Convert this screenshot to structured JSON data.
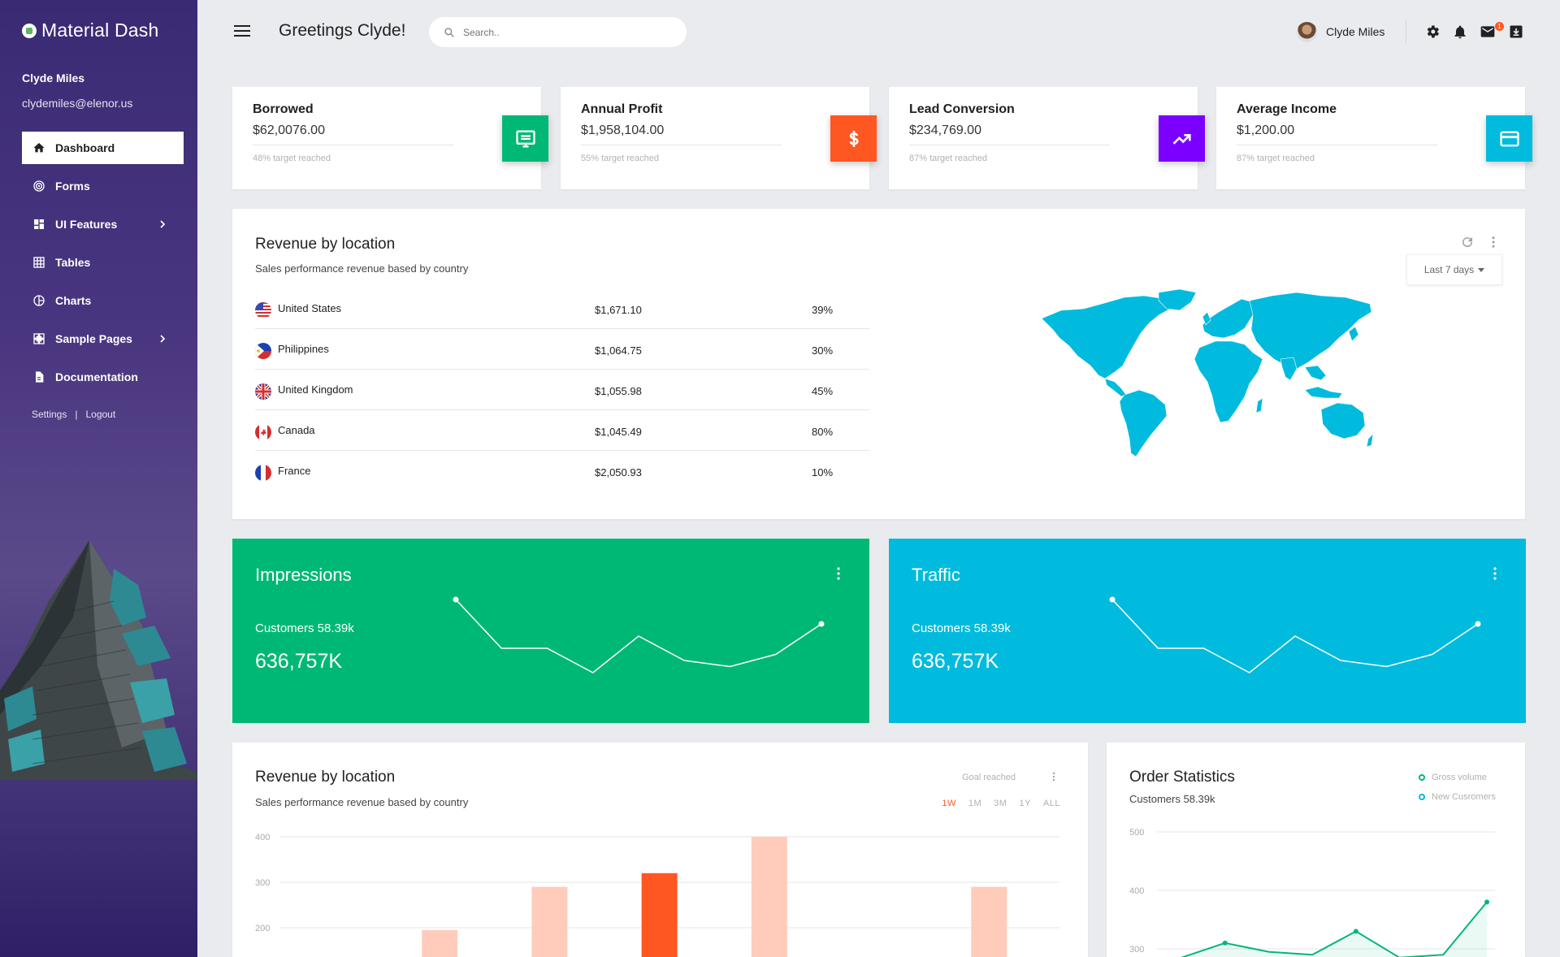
{
  "sidebar": {
    "brand": "Material Dash",
    "user_name": "Clyde Miles",
    "user_email": "clydemiles@elenor.us",
    "items": [
      {
        "label": "Dashboard",
        "icon": "home-icon",
        "active": true
      },
      {
        "label": "Forms",
        "icon": "target-icon"
      },
      {
        "label": "UI Features",
        "icon": "dashboard-grid-icon",
        "has_children": true
      },
      {
        "label": "Tables",
        "icon": "table-icon"
      },
      {
        "label": "Charts",
        "icon": "pie-chart-icon"
      },
      {
        "label": "Sample Pages",
        "icon": "pages-icon",
        "has_children": true
      },
      {
        "label": "Documentation",
        "icon": "document-icon"
      }
    ],
    "settings_label": "Settings",
    "separator": "|",
    "logout_label": "Logout"
  },
  "topbar": {
    "greeting": "Greetings Clyde!",
    "search_placeholder": "Search..",
    "user_name": "Clyde Miles",
    "icons": [
      "settings-icon",
      "bell-icon",
      "mail-icon",
      "download-icon"
    ],
    "mail_badge": "1"
  },
  "stats": [
    {
      "title": "Borrowed",
      "value": "$62,0076.00",
      "sub": "48% target reached",
      "color": "#00b875",
      "icon": "monitor-icon"
    },
    {
      "title": "Annual Profit",
      "value": "$1,958,104.00",
      "sub": "55% target reached",
      "color": "#ff5722",
      "icon": "dollar-icon"
    },
    {
      "title": "Lead Conversion",
      "value": "$234,769.00",
      "sub": "87% target reached",
      "color": "#7b00ff",
      "icon": "trending-up-icon"
    },
    {
      "title": "Average Income",
      "value": "$1,200.00",
      "sub": "87% target reached",
      "color": "#00bbdd",
      "icon": "credit-card-icon"
    }
  ],
  "revenue_map": {
    "title": "Revenue by location",
    "subtitle": "Sales performance revenue based by country",
    "period": "Last 7 days",
    "rows": [
      {
        "country": "United States",
        "amount": "$1,671.10",
        "percent": "39%"
      },
      {
        "country": "Philippines",
        "amount": "$1,064.75",
        "percent": "30%"
      },
      {
        "country": "United Kingdom",
        "amount": "$1,055.98",
        "percent": "45%"
      },
      {
        "country": "Canada",
        "amount": "$1,045.49",
        "percent": "80%"
      },
      {
        "country": "France",
        "amount": "$2,050.93",
        "percent": "10%"
      }
    ],
    "map_color": "#00bbdd"
  },
  "impressions": {
    "title": "Impressions",
    "sub": "Customers 58.39k",
    "value": "636,757K",
    "color": "#00b875",
    "chart_data": {
      "type": "line",
      "values": [
        9,
        5,
        5,
        3,
        6,
        4,
        3.5,
        4.5,
        7
      ]
    }
  },
  "traffic": {
    "title": "Traffic",
    "sub": "Customers 58.39k",
    "value": "636,757K",
    "color": "#00bbdd",
    "chart_data": {
      "type": "line",
      "values": [
        9,
        5,
        5,
        3,
        6,
        4,
        3.5,
        4.5,
        7
      ]
    }
  },
  "revenue_bars": {
    "title": "Revenue by location",
    "subtitle": "Sales performance revenue based by country",
    "goal": "Goal reached",
    "timeframes": [
      "1W",
      "1M",
      "3M",
      "1Y",
      "ALL"
    ],
    "active_timeframe": "1W",
    "chart_data": {
      "type": "bar",
      "y_ticks": [
        400,
        300,
        200
      ],
      "ylim": [
        150,
        400
      ],
      "values": [
        null,
        195,
        290,
        320,
        400,
        null,
        290
      ],
      "highlight_index": 3,
      "color": "#ffccbc",
      "highlight_color": "#ff5722"
    }
  },
  "order_stats": {
    "title": "Order Statistics",
    "sub": "Customers 58.39k",
    "legend": [
      "Gross volume",
      "New Cusromers"
    ],
    "chart_data": {
      "type": "line",
      "y_ticks": [
        500,
        400,
        300
      ],
      "ylim": [
        300,
        500
      ],
      "values": [
        285,
        310,
        295,
        290,
        330,
        285,
        290,
        380
      ],
      "color": "#00b875"
    }
  }
}
